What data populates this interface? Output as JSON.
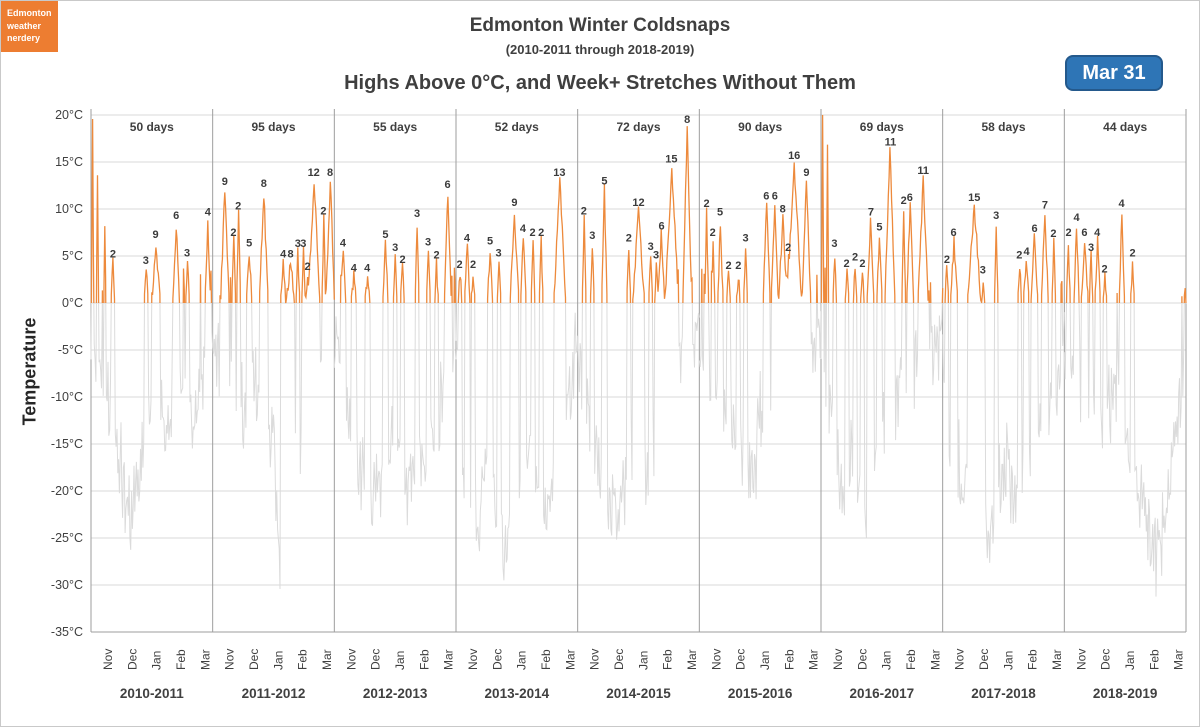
{
  "badge": {
    "lines": [
      "Edmonton",
      "weather",
      "nerdery"
    ],
    "bg": "#ED7D31"
  },
  "date_button": {
    "label": "Mar 31",
    "bg": "#2E75B6"
  },
  "chart_data": {
    "type": "line",
    "title": "Edmonton Winter Coldsnaps",
    "subtitle": "(2010-2011  through  2018-2019)",
    "subtitle2": "Highs Above 0°C, and Week+ Stretches Without Them",
    "ylabel": "Temperature",
    "ylim": [
      -35,
      20
    ],
    "ytick_step": 5,
    "ytick_suffix": "°C",
    "grid": true,
    "legend": "none",
    "months": [
      "Nov",
      "Dec",
      "Jan",
      "Feb",
      "Mar"
    ],
    "colors": {
      "above_zero": "#ED8A3C",
      "below_zero": "#DBDBDB",
      "grid": "#D9D9D9",
      "separator": "#9E9E9E",
      "text": "#404040"
    },
    "seasons": [
      {
        "label": "2010-2011",
        "days_above_label": "50 days",
        "days_above": 50,
        "streak_labels": [
          2,
          3,
          9,
          6,
          3,
          4
        ],
        "warm_events": [
          {
            "pos": 0.015,
            "peak": 20,
            "streak": null
          },
          {
            "pos": 0.05,
            "peak": 13,
            "streak": null
          },
          {
            "pos": 0.11,
            "peak": 8.5,
            "streak": null
          },
          {
            "pos": 0.18,
            "peak": 4.3,
            "streak": 2
          },
          {
            "pos": 0.45,
            "peak": 3.6,
            "streak": 3
          },
          {
            "pos": 0.53,
            "peak": 6.4,
            "streak": 9
          },
          {
            "pos": 0.7,
            "peak": 8.4,
            "streak": 6
          },
          {
            "pos": 0.79,
            "peak": 4.4,
            "streak": 3
          },
          {
            "pos": 0.96,
            "peak": 8.8,
            "streak": 4
          }
        ],
        "cold_dips": [
          {
            "pos": 0.09,
            "min": -8
          },
          {
            "pos": 0.23,
            "min": -16
          },
          {
            "pos": 0.31,
            "min": -23
          },
          {
            "pos": 0.4,
            "min": -18
          },
          {
            "pos": 0.48,
            "min": -10
          },
          {
            "pos": 0.6,
            "min": -13
          },
          {
            "pos": 0.74,
            "min": -8
          },
          {
            "pos": 0.86,
            "min": -12
          },
          {
            "pos": 0.93,
            "min": -5
          }
        ]
      },
      {
        "label": "2011-2012",
        "days_above_label": "95 days",
        "days_above": 95,
        "streak_labels": [
          9,
          2,
          2,
          5,
          8,
          4,
          8,
          3,
          3,
          2,
          12,
          2,
          8
        ],
        "warm_events": [
          {
            "pos": 0.1,
            "peak": 12.0,
            "streak": 9
          },
          {
            "pos": 0.17,
            "peak": 6.6,
            "streak": 2
          },
          {
            "pos": 0.21,
            "peak": 9.4,
            "streak": 2
          },
          {
            "pos": 0.3,
            "peak": 5.5,
            "streak": 5
          },
          {
            "pos": 0.42,
            "peak": 11.8,
            "streak": 8
          },
          {
            "pos": 0.58,
            "peak": 4.3,
            "streak": 4
          },
          {
            "pos": 0.64,
            "peak": 4.3,
            "streak": 8
          },
          {
            "pos": 0.7,
            "peak": 5.4,
            "streak": 3
          },
          {
            "pos": 0.745,
            "peak": 5.4,
            "streak": 3
          },
          {
            "pos": 0.78,
            "peak": 3.0,
            "streak": 2
          },
          {
            "pos": 0.83,
            "peak": 13.0,
            "streak": 12
          },
          {
            "pos": 0.91,
            "peak": 8.9,
            "streak": 2
          },
          {
            "pos": 0.965,
            "peak": 13.0,
            "streak": 8
          }
        ],
        "cold_dips": [
          {
            "pos": 0.06,
            "min": -5
          },
          {
            "pos": 0.26,
            "min": -12
          },
          {
            "pos": 0.33,
            "min": -7
          },
          {
            "pos": 0.5,
            "min": -15
          },
          {
            "pos": 0.555,
            "min": -28
          },
          {
            "pos": 0.61,
            "min": -13
          },
          {
            "pos": 0.73,
            "min": -17
          },
          {
            "pos": 0.88,
            "min": -6
          }
        ]
      },
      {
        "label": "2012-2013",
        "days_above_label": "55 days",
        "days_above": 55,
        "streak_labels": [
          4,
          4,
          4,
          5,
          3,
          2,
          3,
          3,
          2,
          6
        ],
        "warm_events": [
          {
            "pos": 0.07,
            "peak": 5.5,
            "streak": 4
          },
          {
            "pos": 0.16,
            "peak": 2.8,
            "streak": 4
          },
          {
            "pos": 0.27,
            "peak": 2.8,
            "streak": 4
          },
          {
            "pos": 0.42,
            "peak": 6.4,
            "streak": 5
          },
          {
            "pos": 0.5,
            "peak": 5.0,
            "streak": 3
          },
          {
            "pos": 0.56,
            "peak": 3.7,
            "streak": 2
          },
          {
            "pos": 0.68,
            "peak": 8.6,
            "streak": 3
          },
          {
            "pos": 0.77,
            "peak": 5.6,
            "streak": 3
          },
          {
            "pos": 0.84,
            "peak": 4.2,
            "streak": 2
          },
          {
            "pos": 0.93,
            "peak": 11.7,
            "streak": 6
          }
        ],
        "cold_dips": [
          {
            "pos": 0.12,
            "min": -13
          },
          {
            "pos": 0.21,
            "min": -19
          },
          {
            "pos": 0.34,
            "min": -21
          },
          {
            "pos": 0.47,
            "min": -15
          },
          {
            "pos": 0.6,
            "min": -20
          },
          {
            "pos": 0.74,
            "min": -16
          },
          {
            "pos": 0.87,
            "min": -11
          }
        ]
      },
      {
        "label": "2013-2014",
        "days_above_label": "52 days",
        "days_above": 52,
        "streak_labels": [
          2,
          4,
          2,
          5,
          3,
          9,
          4,
          2,
          2,
          13
        ],
        "warm_events": [
          {
            "pos": 0.03,
            "peak": 3.2,
            "streak": 2
          },
          {
            "pos": 0.09,
            "peak": 6.0,
            "streak": 4
          },
          {
            "pos": 0.14,
            "peak": 3.2,
            "streak": 2
          },
          {
            "pos": 0.28,
            "peak": 5.7,
            "streak": 5
          },
          {
            "pos": 0.35,
            "peak": 4.4,
            "streak": 3
          },
          {
            "pos": 0.48,
            "peak": 9.8,
            "streak": 9
          },
          {
            "pos": 0.55,
            "peak": 7.0,
            "streak": 4
          },
          {
            "pos": 0.63,
            "peak": 6.6,
            "streak": 2
          },
          {
            "pos": 0.7,
            "peak": 6.6,
            "streak": 2
          },
          {
            "pos": 0.85,
            "peak": 13.0,
            "streak": 13
          }
        ],
        "cold_dips": [
          {
            "pos": 0.06,
            "min": -18
          },
          {
            "pos": 0.18,
            "min": -24
          },
          {
            "pos": 0.24,
            "min": -15
          },
          {
            "pos": 0.4,
            "min": -26
          },
          {
            "pos": 0.59,
            "min": -14
          },
          {
            "pos": 0.67,
            "min": -19
          },
          {
            "pos": 0.76,
            "min": -21
          },
          {
            "pos": 0.93,
            "min": -10
          }
        ]
      },
      {
        "label": "2014-2015",
        "days_above_label": "72 days",
        "days_above": 72,
        "streak_labels": [
          2,
          3,
          5,
          2,
          12,
          3,
          3,
          6,
          15,
          8
        ],
        "warm_events": [
          {
            "pos": 0.05,
            "peak": 8.9,
            "streak": 2
          },
          {
            "pos": 0.12,
            "peak": 6.3,
            "streak": 3
          },
          {
            "pos": 0.22,
            "peak": 12.1,
            "streak": 5
          },
          {
            "pos": 0.42,
            "peak": 6.0,
            "streak": 2
          },
          {
            "pos": 0.5,
            "peak": 9.8,
            "streak": 12
          },
          {
            "pos": 0.6,
            "peak": 5.1,
            "streak": 3
          },
          {
            "pos": 0.645,
            "peak": 4.2,
            "streak": 3
          },
          {
            "pos": 0.69,
            "peak": 7.3,
            "streak": 6
          },
          {
            "pos": 0.77,
            "peak": 14.4,
            "streak": 15
          },
          {
            "pos": 0.9,
            "peak": 18.6,
            "streak": 8
          }
        ],
        "cold_dips": [
          {
            "pos": 0.09,
            "min": -11
          },
          {
            "pos": 0.17,
            "min": -19
          },
          {
            "pos": 0.32,
            "min": -22
          },
          {
            "pos": 0.45,
            "min": -16
          },
          {
            "pos": 0.56,
            "min": -18
          },
          {
            "pos": 0.705,
            "min": -9
          },
          {
            "pos": 0.85,
            "min": -6
          }
        ]
      },
      {
        "label": "2015-2016",
        "days_above_label": "90 days",
        "days_above": 90,
        "streak_labels": [
          2,
          2,
          5,
          2,
          2,
          3,
          6,
          6,
          8,
          2,
          16,
          9
        ],
        "warm_events": [
          {
            "pos": 0.06,
            "peak": 9.7,
            "streak": 2
          },
          {
            "pos": 0.11,
            "peak": 6.6,
            "streak": 2
          },
          {
            "pos": 0.17,
            "peak": 8.8,
            "streak": 5
          },
          {
            "pos": 0.24,
            "peak": 3.1,
            "streak": 2
          },
          {
            "pos": 0.32,
            "peak": 3.1,
            "streak": 2
          },
          {
            "pos": 0.38,
            "peak": 6.0,
            "streak": 3
          },
          {
            "pos": 0.55,
            "peak": 10.5,
            "streak": 6
          },
          {
            "pos": 0.62,
            "peak": 10.5,
            "streak": 6
          },
          {
            "pos": 0.685,
            "peak": 9.1,
            "streak": 8
          },
          {
            "pos": 0.73,
            "peak": 5.0,
            "streak": 2
          },
          {
            "pos": 0.78,
            "peak": 14.8,
            "streak": 16
          },
          {
            "pos": 0.88,
            "peak": 13.0,
            "streak": 9
          }
        ],
        "cold_dips": [
          {
            "pos": 0.09,
            "min": -8
          },
          {
            "pos": 0.28,
            "min": -14
          },
          {
            "pos": 0.44,
            "min": -19
          },
          {
            "pos": 0.5,
            "min": -12
          },
          {
            "pos": 0.59,
            "min": -16
          },
          {
            "pos": 0.75,
            "min": -6
          }
        ]
      },
      {
        "label": "2016-2017",
        "days_above_label": "69 days",
        "days_above": 69,
        "streak_labels": [
          3,
          2,
          2,
          2,
          7,
          5,
          11,
          2,
          6,
          11
        ],
        "warm_events": [
          {
            "pos": 0.015,
            "peak": 20,
            "streak": null
          },
          {
            "pos": 0.05,
            "peak": 17,
            "streak": null
          },
          {
            "pos": 0.11,
            "peak": 5.4,
            "streak": 3
          },
          {
            "pos": 0.21,
            "peak": 3.3,
            "streak": 2
          },
          {
            "pos": 0.28,
            "peak": 4.0,
            "streak": 2
          },
          {
            "pos": 0.34,
            "peak": 3.3,
            "streak": 2
          },
          {
            "pos": 0.41,
            "peak": 8.8,
            "streak": 7
          },
          {
            "pos": 0.48,
            "peak": 7.2,
            "streak": 5
          },
          {
            "pos": 0.57,
            "peak": 16.2,
            "streak": 11
          },
          {
            "pos": 0.68,
            "peak": 10.0,
            "streak": 2
          },
          {
            "pos": 0.73,
            "peak": 10.3,
            "streak": 6
          },
          {
            "pos": 0.84,
            "peak": 13.2,
            "streak": 11
          }
        ],
        "cold_dips": [
          {
            "pos": 0.08,
            "min": -11
          },
          {
            "pos": 0.18,
            "min": -20
          },
          {
            "pos": 0.26,
            "min": -16
          },
          {
            "pos": 0.37,
            "min": -22
          },
          {
            "pos": 0.52,
            "min": -13
          },
          {
            "pos": 0.63,
            "min": -9
          },
          {
            "pos": 0.92,
            "min": -5
          }
        ]
      },
      {
        "label": "2017-2018",
        "days_above_label": "58 days",
        "days_above": 58,
        "streak_labels": [
          2,
          6,
          15,
          3,
          3,
          2,
          4,
          6,
          7,
          2
        ],
        "warm_events": [
          {
            "pos": 0.035,
            "peak": 3.7,
            "streak": 2
          },
          {
            "pos": 0.09,
            "peak": 6.6,
            "streak": 6
          },
          {
            "pos": 0.26,
            "peak": 10.3,
            "streak": 15
          },
          {
            "pos": 0.33,
            "peak": 2.6,
            "streak": 3
          },
          {
            "pos": 0.44,
            "peak": 8.4,
            "streak": 3
          },
          {
            "pos": 0.63,
            "peak": 4.2,
            "streak": 2
          },
          {
            "pos": 0.69,
            "peak": 4.6,
            "streak": 4
          },
          {
            "pos": 0.755,
            "peak": 7.0,
            "streak": 6
          },
          {
            "pos": 0.84,
            "peak": 9.5,
            "streak": 7
          },
          {
            "pos": 0.91,
            "peak": 6.5,
            "streak": 2
          }
        ],
        "cold_dips": [
          {
            "pos": 0.06,
            "min": -14
          },
          {
            "pos": 0.17,
            "min": -19
          },
          {
            "pos": 0.4,
            "min": -23
          },
          {
            "pos": 0.52,
            "min": -16
          },
          {
            "pos": 0.585,
            "min": -21
          },
          {
            "pos": 0.8,
            "min": -13
          },
          {
            "pos": 0.95,
            "min": -9
          }
        ]
      },
      {
        "label": "2018-2019",
        "days_above_label": "44 days",
        "days_above": 44,
        "streak_labels": [
          2,
          4,
          6,
          3,
          4,
          2,
          4,
          2
        ],
        "warm_events": [
          {
            "pos": 0.035,
            "peak": 6.6,
            "streak": 2
          },
          {
            "pos": 0.1,
            "peak": 8.2,
            "streak": 4
          },
          {
            "pos": 0.165,
            "peak": 6.6,
            "streak": 6
          },
          {
            "pos": 0.22,
            "peak": 5.0,
            "streak": 3
          },
          {
            "pos": 0.27,
            "peak": 6.6,
            "streak": 4
          },
          {
            "pos": 0.33,
            "peak": 2.7,
            "streak": 2
          },
          {
            "pos": 0.47,
            "peak": 9.7,
            "streak": 4
          },
          {
            "pos": 0.56,
            "peak": 4.4,
            "streak": 2
          },
          {
            "pos": 0.995,
            "peak": 1.5,
            "streak": null
          }
        ],
        "cold_dips": [
          {
            "pos": 0.13,
            "min": -9
          },
          {
            "pos": 0.3,
            "min": -13
          },
          {
            "pos": 0.43,
            "min": -8
          },
          {
            "pos": 0.52,
            "min": -16
          },
          {
            "pos": 0.66,
            "min": -21
          },
          {
            "pos": 0.76,
            "min": -27
          },
          {
            "pos": 0.87,
            "min": -19
          },
          {
            "pos": 0.96,
            "min": -10
          }
        ]
      }
    ]
  }
}
